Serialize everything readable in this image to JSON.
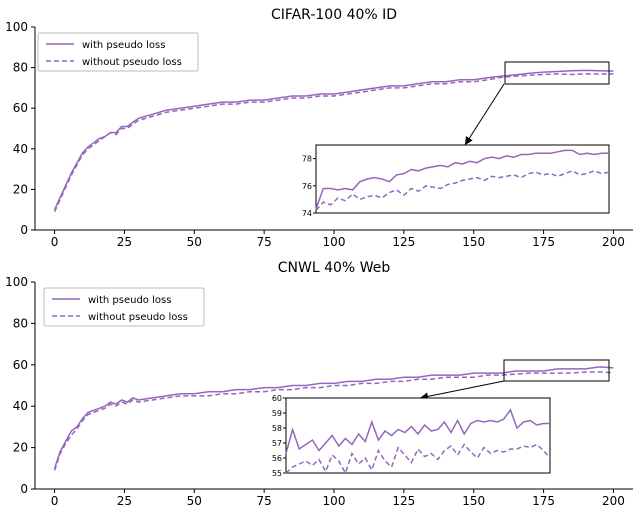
{
  "chart_data": [
    {
      "type": "line",
      "title": "CIFAR-100 40% ID",
      "xlim": [
        -7,
        207
      ],
      "ylim": [
        0,
        100
      ],
      "xticks": [
        "0",
        "25",
        "50",
        "75",
        "100",
        "125",
        "150",
        "175",
        "200"
      ],
      "yticks": [
        "0",
        "20",
        "40",
        "60",
        "80",
        "100"
      ],
      "legend_position": "top-left",
      "grid": false,
      "series": [
        {
          "name": "with pseudo loss",
          "style": "solid",
          "color": "#9467bd",
          "x": [
            0,
            2,
            4,
            6,
            8,
            10,
            12,
            14,
            16,
            18,
            20,
            22,
            24,
            26,
            28,
            30,
            35,
            40,
            45,
            50,
            55,
            60,
            65,
            70,
            75,
            80,
            85,
            90,
            95,
            100,
            105,
            110,
            115,
            120,
            125,
            130,
            135,
            140,
            145,
            150,
            155,
            160,
            165,
            170,
            175,
            180,
            185,
            190,
            195,
            200
          ],
          "values": [
            10,
            16,
            22,
            28,
            33,
            38,
            41,
            43,
            45,
            46,
            48,
            48,
            51,
            51,
            53,
            55,
            57,
            59,
            60,
            61,
            62,
            63,
            63,
            64,
            64,
            65,
            66,
            66,
            67,
            67,
            68,
            69,
            70,
            71,
            71,
            72,
            73,
            73,
            74,
            74,
            75,
            75.8,
            76.4,
            77.2,
            77.8,
            78.1,
            78.4,
            78.6,
            78.4,
            78.3
          ]
        },
        {
          "name": "without pseudo loss",
          "style": "dashed",
          "color": "#9467bd",
          "x": [
            0,
            2,
            4,
            6,
            8,
            10,
            12,
            14,
            16,
            18,
            20,
            22,
            24,
            26,
            28,
            30,
            35,
            40,
            45,
            50,
            55,
            60,
            65,
            70,
            75,
            80,
            85,
            90,
            95,
            100,
            105,
            110,
            115,
            120,
            125,
            130,
            135,
            140,
            145,
            150,
            155,
            160,
            165,
            170,
            175,
            180,
            185,
            190,
            195,
            200
          ],
          "values": [
            9,
            15,
            21,
            27,
            32,
            37,
            40,
            42,
            44,
            46,
            48,
            47,
            50,
            50,
            52,
            54,
            56,
            58,
            59,
            60,
            61,
            62,
            62,
            63,
            63,
            64,
            65,
            65,
            66,
            66,
            67,
            68,
            69,
            70,
            70,
            71,
            72,
            72,
            73,
            73,
            74,
            75.2,
            75.8,
            76.2,
            76.6,
            76.9,
            76.6,
            76.9,
            76.8,
            76.9
          ]
        }
      ],
      "inset": {
        "xlim": [
          160,
          200
        ],
        "ylim": [
          74,
          79
        ],
        "yticks": [
          "74",
          "76",
          "78"
        ],
        "series": [
          {
            "name": "with pseudo loss",
            "x": [
              160,
              161,
              162,
              163,
              164,
              165,
              166,
              167,
              168,
              169,
              170,
              171,
              172,
              173,
              174,
              175,
              176,
              177,
              178,
              179,
              180,
              181,
              182,
              183,
              184,
              185,
              186,
              187,
              188,
              189,
              190,
              191,
              192,
              193,
              194,
              195,
              196,
              197,
              198,
              199,
              200
            ],
            "values": [
              74.3,
              75.8,
              75.8,
              75.7,
              75.8,
              75.7,
              76.3,
              76.5,
              76.6,
              76.5,
              76.3,
              76.8,
              76.9,
              77.2,
              77.1,
              77.3,
              77.4,
              77.5,
              77.4,
              77.7,
              77.6,
              77.8,
              77.7,
              78.0,
              78.1,
              78.0,
              78.2,
              78.1,
              78.3,
              78.3,
              78.4,
              78.4,
              78.4,
              78.5,
              78.6,
              78.6,
              78.3,
              78.4,
              78.3,
              78.4,
              78.4
            ]
          },
          {
            "name": "without pseudo loss",
            "x": [
              160,
              161,
              162,
              163,
              164,
              165,
              166,
              167,
              168,
              169,
              170,
              171,
              172,
              173,
              174,
              175,
              176,
              177,
              178,
              179,
              180,
              181,
              182,
              183,
              184,
              185,
              186,
              187,
              188,
              189,
              190,
              191,
              192,
              193,
              194,
              195,
              196,
              197,
              198,
              199,
              200
            ],
            "values": [
              74.2,
              74.8,
              74.6,
              75.1,
              74.9,
              75.4,
              75.0,
              75.2,
              75.3,
              75.1,
              75.5,
              75.7,
              75.3,
              75.8,
              75.6,
              76.0,
              75.9,
              75.8,
              76.1,
              76.2,
              76.4,
              76.5,
              76.6,
              76.4,
              76.7,
              76.6,
              76.7,
              76.8,
              76.6,
              76.9,
              77.0,
              76.8,
              76.9,
              76.7,
              76.9,
              77.1,
              76.8,
              76.9,
              77.1,
              76.9,
              77.0
            ]
          }
        ]
      }
    },
    {
      "type": "line",
      "title": "CNWL 40% Web",
      "xlim": [
        -7,
        207
      ],
      "ylim": [
        0,
        100
      ],
      "xticks": [
        "0",
        "25",
        "50",
        "75",
        "100",
        "125",
        "150",
        "175",
        "200"
      ],
      "yticks": [
        "0",
        "20",
        "40",
        "60",
        "80",
        "100"
      ],
      "legend_position": "top-left",
      "grid": false,
      "series": [
        {
          "name": "with pseudo loss",
          "style": "solid",
          "color": "#9467bd",
          "x": [
            0,
            2,
            4,
            6,
            8,
            10,
            12,
            14,
            16,
            18,
            20,
            22,
            24,
            26,
            28,
            30,
            35,
            40,
            45,
            50,
            55,
            60,
            65,
            70,
            75,
            80,
            85,
            90,
            95,
            100,
            105,
            110,
            115,
            120,
            125,
            130,
            135,
            140,
            145,
            150,
            155,
            160,
            165,
            170,
            175,
            180,
            185,
            190,
            195,
            200
          ],
          "values": [
            10,
            18,
            23,
            28,
            30,
            34,
            37,
            38,
            39,
            40,
            42,
            41,
            43,
            42,
            44,
            43,
            44,
            45,
            46,
            46,
            47,
            47,
            48,
            48,
            49,
            49,
            50,
            50,
            51,
            51,
            52,
            52,
            53,
            53,
            54,
            54,
            55,
            55,
            55,
            56,
            56,
            56,
            57,
            57,
            57,
            58,
            58,
            58,
            59,
            58.5
          ]
        },
        {
          "name": "without pseudo loss",
          "style": "dashed",
          "color": "#9467bd",
          "x": [
            0,
            2,
            4,
            6,
            8,
            10,
            12,
            14,
            16,
            18,
            20,
            22,
            24,
            26,
            28,
            30,
            35,
            40,
            45,
            50,
            55,
            60,
            65,
            70,
            75,
            80,
            85,
            90,
            95,
            100,
            105,
            110,
            115,
            120,
            125,
            130,
            135,
            140,
            145,
            150,
            155,
            160,
            165,
            170,
            175,
            180,
            185,
            190,
            195,
            200
          ],
          "values": [
            9,
            17,
            22,
            26,
            29,
            33,
            36,
            37,
            38,
            39,
            41,
            40,
            42,
            41,
            43,
            42,
            43,
            44,
            45,
            45,
            45,
            46,
            46,
            47,
            47,
            48,
            48,
            49,
            49,
            50,
            50,
            51,
            51,
            52,
            52,
            53,
            53,
            54,
            54,
            54,
            55,
            55,
            55.5,
            56,
            56,
            56,
            56,
            56.5,
            56.5,
            56.2
          ]
        }
      ],
      "inset": {
        "xlim": [
          160,
          200
        ],
        "ylim": [
          55,
          60
        ],
        "yticks": [
          "55",
          "56",
          "57",
          "58",
          "59",
          "60"
        ],
        "series": [
          {
            "name": "with pseudo loss",
            "x": [
              160,
              161,
              162,
              163,
              164,
              165,
              166,
              167,
              168,
              169,
              170,
              171,
              172,
              173,
              174,
              175,
              176,
              177,
              178,
              179,
              180,
              181,
              182,
              183,
              184,
              185,
              186,
              187,
              188,
              189,
              190,
              191,
              192,
              193,
              194,
              195,
              196,
              197,
              198,
              199,
              200
            ],
            "values": [
              56.3,
              57.9,
              56.6,
              56.9,
              57.2,
              56.5,
              57.0,
              57.5,
              56.8,
              57.3,
              56.9,
              57.6,
              57.1,
              58.4,
              57.2,
              57.8,
              57.5,
              57.9,
              57.7,
              58.1,
              57.6,
              58.2,
              57.8,
              57.9,
              58.4,
              57.7,
              58.5,
              57.6,
              58.3,
              58.5,
              58.4,
              58.5,
              58.4,
              58.6,
              59.2,
              58.0,
              58.4,
              58.5,
              58.2,
              58.3,
              58.3
            ]
          },
          {
            "name": "without pseudo loss",
            "x": [
              160,
              161,
              162,
              163,
              164,
              165,
              166,
              167,
              168,
              169,
              170,
              171,
              172,
              173,
              174,
              175,
              176,
              177,
              178,
              179,
              180,
              181,
              182,
              183,
              184,
              185,
              186,
              187,
              188,
              189,
              190,
              191,
              192,
              193,
              194,
              195,
              196,
              197,
              198,
              199,
              200
            ],
            "values": [
              55.0,
              55.4,
              55.6,
              55.8,
              55.5,
              55.9,
              55.1,
              56.2,
              55.8,
              55.0,
              56.3,
              55.6,
              56.0,
              55.2,
              56.5,
              55.8,
              55.4,
              56.7,
              56.2,
              55.7,
              56.6,
              56.1,
              56.3,
              55.9,
              56.5,
              56.8,
              56.2,
              56.9,
              56.4,
              56.0,
              56.7,
              56.3,
              56.5,
              56.4,
              56.6,
              56.6,
              56.8,
              56.7,
              56.9,
              56.5,
              56.0
            ]
          }
        ]
      }
    }
  ]
}
